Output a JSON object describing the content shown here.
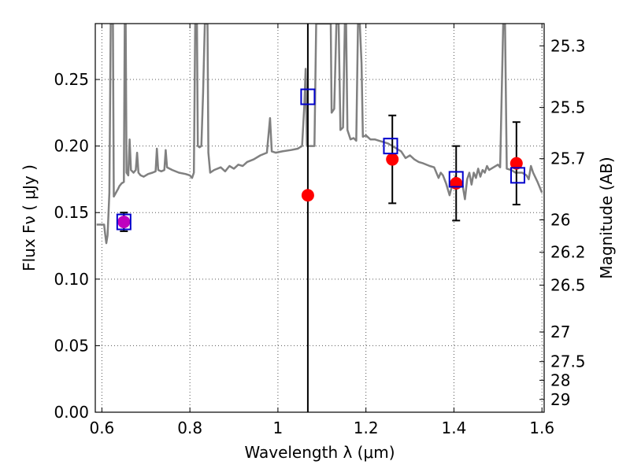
{
  "chart_data": {
    "type": "scatter",
    "xlabel": "Wavelength  λ (μm)",
    "ylabel": "Flux  Fν  ( μJy )",
    "ylabel_right": "Magnitude (AB)",
    "xlim": [
      0.585,
      1.605
    ],
    "ylim": [
      0.0,
      0.292
    ],
    "grid": true,
    "x_ticks": [
      {
        "value": 0.6,
        "label": "0.6"
      },
      {
        "value": 0.8,
        "label": "0.8"
      },
      {
        "value": 1.0,
        "label": "1"
      },
      {
        "value": 1.2,
        "label": "1.2"
      },
      {
        "value": 1.4,
        "label": "1.4"
      },
      {
        "value": 1.6,
        "label": "1.6"
      }
    ],
    "y_ticks": [
      {
        "value": 0.0,
        "label": "0.00"
      },
      {
        "value": 0.05,
        "label": "0.05"
      },
      {
        "value": 0.1,
        "label": "0.10"
      },
      {
        "value": 0.15,
        "label": "0.15"
      },
      {
        "value": 0.2,
        "label": "0.20"
      },
      {
        "value": 0.25,
        "label": "0.25"
      }
    ],
    "right_ticks": [
      {
        "flux": 0.2753,
        "label": "25.3"
      },
      {
        "flux": 0.229,
        "label": "25.5"
      },
      {
        "flux": 0.1905,
        "label": "25.7"
      },
      {
        "flux": 0.1445,
        "label": "26"
      },
      {
        "flux": 0.1202,
        "label": "26.2"
      },
      {
        "flux": 0.0955,
        "label": "26.5"
      },
      {
        "flux": 0.0603,
        "label": "27"
      },
      {
        "flux": 0.038,
        "label": "27.5"
      },
      {
        "flux": 0.024,
        "label": "28"
      },
      {
        "flux": 0.0096,
        "label": "29"
      }
    ],
    "vertical_line_x": 1.068,
    "colors": {
      "model": "#808080",
      "observed": "#ff0000",
      "model_band": "#0000cc",
      "overlap": "#bf00bf",
      "errorbar": "#000000",
      "vline": "#000000",
      "grid": "#555555"
    },
    "observed_points": [
      {
        "x": 0.65,
        "y": 0.143,
        "err": 0.007
      },
      {
        "x": 1.068,
        "y": 0.163
      },
      {
        "x": 1.26,
        "y": 0.19,
        "err": 0.033
      },
      {
        "x": 1.405,
        "y": 0.172,
        "err": 0.028
      },
      {
        "x": 1.542,
        "y": 0.187,
        "err": 0.031
      }
    ],
    "model_band_points": [
      {
        "x": 0.65,
        "y": 0.143
      },
      {
        "x": 1.068,
        "y": 0.237
      },
      {
        "x": 1.256,
        "y": 0.2
      },
      {
        "x": 1.405,
        "y": 0.175
      },
      {
        "x": 1.545,
        "y": 0.178
      }
    ],
    "model_spectrum": [
      [
        0.588,
        0.141
      ],
      [
        0.6,
        0.141
      ],
      [
        0.605,
        0.141
      ],
      [
        0.607,
        0.135
      ],
      [
        0.61,
        0.127
      ],
      [
        0.613,
        0.133
      ],
      [
        0.617,
        0.165
      ],
      [
        0.62,
        0.292
      ],
      [
        0.625,
        0.292
      ],
      [
        0.627,
        0.162
      ],
      [
        0.632,
        0.165
      ],
      [
        0.637,
        0.168
      ],
      [
        0.64,
        0.17
      ],
      [
        0.645,
        0.172
      ],
      [
        0.65,
        0.173
      ],
      [
        0.652,
        0.292
      ],
      [
        0.654,
        0.292
      ],
      [
        0.656,
        0.18
      ],
      [
        0.66,
        0.178
      ],
      [
        0.663,
        0.205
      ],
      [
        0.666,
        0.182
      ],
      [
        0.672,
        0.18
      ],
      [
        0.677,
        0.182
      ],
      [
        0.68,
        0.195
      ],
      [
        0.683,
        0.18
      ],
      [
        0.688,
        0.178
      ],
      [
        0.695,
        0.177
      ],
      [
        0.705,
        0.179
      ],
      [
        0.715,
        0.18
      ],
      [
        0.722,
        0.181
      ],
      [
        0.725,
        0.198
      ],
      [
        0.728,
        0.182
      ],
      [
        0.735,
        0.181
      ],
      [
        0.742,
        0.182
      ],
      [
        0.745,
        0.197
      ],
      [
        0.748,
        0.184
      ],
      [
        0.76,
        0.182
      ],
      [
        0.775,
        0.18
      ],
      [
        0.79,
        0.179
      ],
      [
        0.8,
        0.178
      ],
      [
        0.805,
        0.176
      ],
      [
        0.809,
        0.18
      ],
      [
        0.812,
        0.292
      ],
      [
        0.816,
        0.292
      ],
      [
        0.818,
        0.2
      ],
      [
        0.822,
        0.199
      ],
      [
        0.826,
        0.2
      ],
      [
        0.83,
        0.24
      ],
      [
        0.834,
        0.292
      ],
      [
        0.84,
        0.292
      ],
      [
        0.842,
        0.195
      ],
      [
        0.846,
        0.18
      ],
      [
        0.855,
        0.182
      ],
      [
        0.87,
        0.184
      ],
      [
        0.88,
        0.181
      ],
      [
        0.89,
        0.185
      ],
      [
        0.9,
        0.183
      ],
      [
        0.91,
        0.186
      ],
      [
        0.92,
        0.185
      ],
      [
        0.93,
        0.188
      ],
      [
        0.945,
        0.19
      ],
      [
        0.96,
        0.193
      ],
      [
        0.975,
        0.195
      ],
      [
        0.982,
        0.221
      ],
      [
        0.986,
        0.196
      ],
      [
        0.995,
        0.195
      ],
      [
        1.01,
        0.196
      ],
      [
        1.03,
        0.197
      ],
      [
        1.045,
        0.198
      ],
      [
        1.055,
        0.2
      ],
      [
        1.06,
        0.23
      ],
      [
        1.063,
        0.258
      ],
      [
        1.066,
        0.2
      ],
      [
        1.072,
        0.2
      ],
      [
        1.083,
        0.2
      ],
      [
        1.087,
        0.292
      ],
      [
        1.1,
        0.292
      ],
      [
        1.115,
        0.292
      ],
      [
        1.12,
        0.292
      ],
      [
        1.122,
        0.225
      ],
      [
        1.128,
        0.228
      ],
      [
        1.133,
        0.292
      ],
      [
        1.138,
        0.292
      ],
      [
        1.142,
        0.212
      ],
      [
        1.148,
        0.214
      ],
      [
        1.152,
        0.292
      ],
      [
        1.155,
        0.292
      ],
      [
        1.158,
        0.212
      ],
      [
        1.165,
        0.205
      ],
      [
        1.172,
        0.206
      ],
      [
        1.178,
        0.204
      ],
      [
        1.182,
        0.292
      ],
      [
        1.186,
        0.292
      ],
      [
        1.19,
        0.262
      ],
      [
        1.193,
        0.207
      ],
      [
        1.2,
        0.208
      ],
      [
        1.21,
        0.205
      ],
      [
        1.22,
        0.205
      ],
      [
        1.23,
        0.204
      ],
      [
        1.25,
        0.202
      ],
      [
        1.265,
        0.199
      ],
      [
        1.28,
        0.196
      ],
      [
        1.29,
        0.191
      ],
      [
        1.3,
        0.193
      ],
      [
        1.31,
        0.19
      ],
      [
        1.32,
        0.188
      ],
      [
        1.33,
        0.187
      ],
      [
        1.345,
        0.185
      ],
      [
        1.355,
        0.184
      ],
      [
        1.365,
        0.176
      ],
      [
        1.37,
        0.18
      ],
      [
        1.375,
        0.178
      ],
      [
        1.382,
        0.172
      ],
      [
        1.39,
        0.163
      ],
      [
        1.397,
        0.172
      ],
      [
        1.403,
        0.177
      ],
      [
        1.41,
        0.174
      ],
      [
        1.42,
        0.17
      ],
      [
        1.425,
        0.16
      ],
      [
        1.43,
        0.175
      ],
      [
        1.435,
        0.18
      ],
      [
        1.44,
        0.171
      ],
      [
        1.445,
        0.18
      ],
      [
        1.45,
        0.176
      ],
      [
        1.455,
        0.183
      ],
      [
        1.46,
        0.177
      ],
      [
        1.465,
        0.182
      ],
      [
        1.47,
        0.18
      ],
      [
        1.475,
        0.185
      ],
      [
        1.48,
        0.182
      ],
      [
        1.49,
        0.184
      ],
      [
        1.5,
        0.186
      ],
      [
        1.505,
        0.184
      ],
      [
        1.512,
        0.292
      ],
      [
        1.516,
        0.292
      ],
      [
        1.52,
        0.183
      ],
      [
        1.53,
        0.182
      ],
      [
        1.54,
        0.18
      ],
      [
        1.555,
        0.18
      ],
      [
        1.565,
        0.178
      ],
      [
        1.57,
        0.175
      ],
      [
        1.575,
        0.185
      ],
      [
        1.58,
        0.18
      ],
      [
        1.59,
        0.173
      ],
      [
        1.6,
        0.165
      ]
    ]
  }
}
